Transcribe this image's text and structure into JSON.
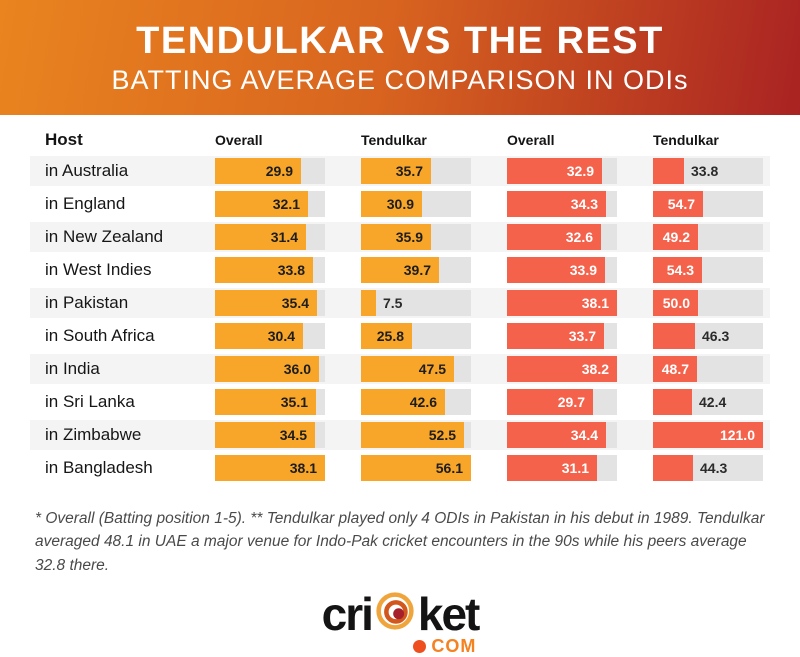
{
  "header": {
    "title": "TENDULKAR VS THE REST",
    "subtitle": "BATTING AVERAGE COMPARISON IN ODIs"
  },
  "table": {
    "columns": [
      "Host",
      "Overall",
      "Tendulkar",
      "Overall",
      "Tendulkar"
    ]
  },
  "chart_data": {
    "type": "bar",
    "title": "TENDULKAR VS THE REST — BATTING AVERAGE COMPARISON IN ODIs",
    "categories": [
      "in Australia",
      "in England",
      "in New Zealand",
      "in West Indies",
      "in Pakistan",
      "in South Africa",
      "in India",
      "in Sri Lanka",
      "in Zimbabwe",
      "in Bangladesh"
    ],
    "series": [
      {
        "name": "Overall",
        "color": "#F8A62A",
        "text_inside": "#1d1d1d",
        "values": [
          29.9,
          32.1,
          31.4,
          33.8,
          35.4,
          30.4,
          36.0,
          35.1,
          34.5,
          38.1
        ]
      },
      {
        "name": "Tendulkar",
        "color": "#F8A62A",
        "text_inside": "#1d1d1d",
        "values": [
          35.7,
          30.9,
          35.9,
          39.7,
          7.5,
          25.8,
          47.5,
          42.6,
          52.5,
          56.1
        ]
      },
      {
        "name": "Overall",
        "color": "#F4624C",
        "text_inside": "#ffffff",
        "values": [
          32.9,
          34.3,
          32.6,
          33.9,
          38.1,
          33.7,
          38.2,
          29.7,
          34.4,
          31.1
        ]
      },
      {
        "name": "Tendulkar",
        "color": "#F4624C",
        "text_inside": "#ffffff",
        "values": [
          33.8,
          54.7,
          49.2,
          54.3,
          50.0,
          46.3,
          48.7,
          42.4,
          121.0,
          44.3
        ]
      }
    ],
    "text_outside": "#2b2b2b",
    "track_color": "#E3E3E3",
    "layout": {
      "bars_scaled_per_column_max": true,
      "grid": false,
      "legend": "column headers"
    }
  },
  "colors": {
    "banner_left": "#E9841F",
    "banner_right": "#A92322",
    "bar_yellow": "#F8A62A",
    "bar_red": "#F4624C",
    "row_stripe": "#F4F4F4"
  },
  "footnote": "* Overall (Batting position 1-5). ** Tendulkar played only 4 ODIs in Pakistan in his debut in 1989. Tendulkar averaged 48.1 in UAE a major venue for Indo-Pak cricket encounters in the 90s while his peers average 32.8 there.",
  "logo": {
    "word_left": "cri",
    "word_right": "ket",
    "tld": "COM"
  }
}
